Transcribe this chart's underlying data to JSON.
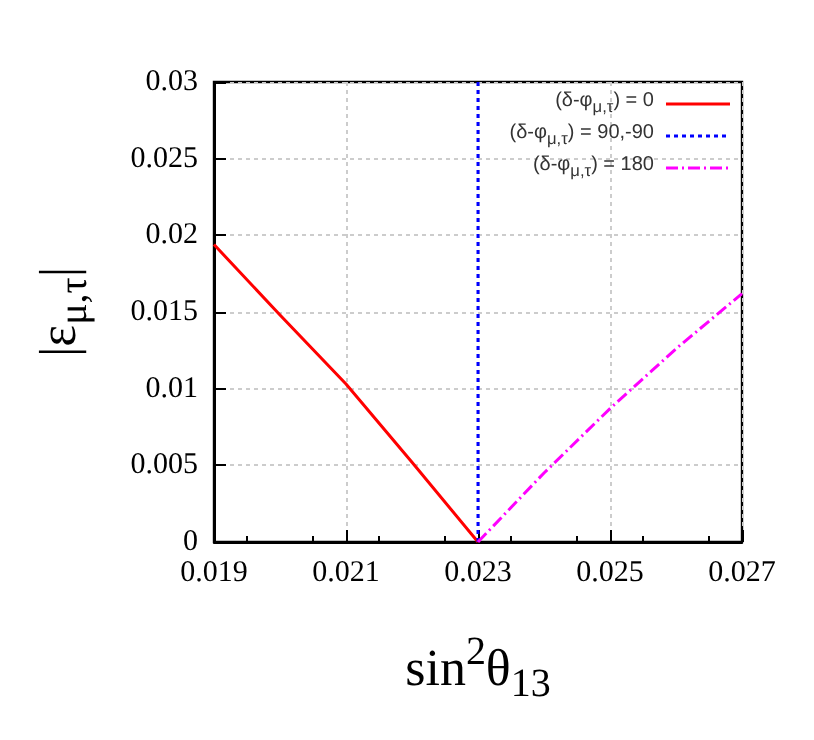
{
  "chart_data": {
    "type": "line",
    "xlabel": "sin$^{2}$θ$_{13}$",
    "ylabel": "|ε$_{μ,τ}$|",
    "xlim": [
      0.019,
      0.027
    ],
    "xticks": [
      0.019,
      0.021,
      0.023,
      0.025,
      0.027
    ],
    "ylim": [
      0,
      0.03
    ],
    "yticks": [
      0,
      0.005,
      0.01,
      0.015,
      0.02,
      0.025,
      0.03
    ],
    "grid": true,
    "legend": "top right",
    "series": [
      {
        "name": "(δ-φ$_{μ,τ}$) = 0",
        "color": "#ff0000",
        "line_style": "solid",
        "x": [
          0.019,
          0.02,
          0.021,
          0.022,
          0.023
        ],
        "values": [
          0.0194,
          0.0148,
          0.0103,
          0.0052,
          0
        ]
      },
      {
        "name": "(δ-φ$_{μ,τ}$) = 90,-90",
        "color": "#0000ff",
        "line_style": "dotted",
        "x": [
          0.023,
          0.023
        ],
        "values": [
          0,
          0.03
        ]
      },
      {
        "name": "(δ-φ$_{μ,τ}$) = 180",
        "color": "#ff00ff",
        "line_style": "dashed",
        "x": [
          0.023,
          0.024,
          0.025,
          0.026,
          0.027
        ],
        "values": [
          0,
          0.0045,
          0.0087,
          0.0126,
          0.0162
        ]
      }
    ]
  }
}
